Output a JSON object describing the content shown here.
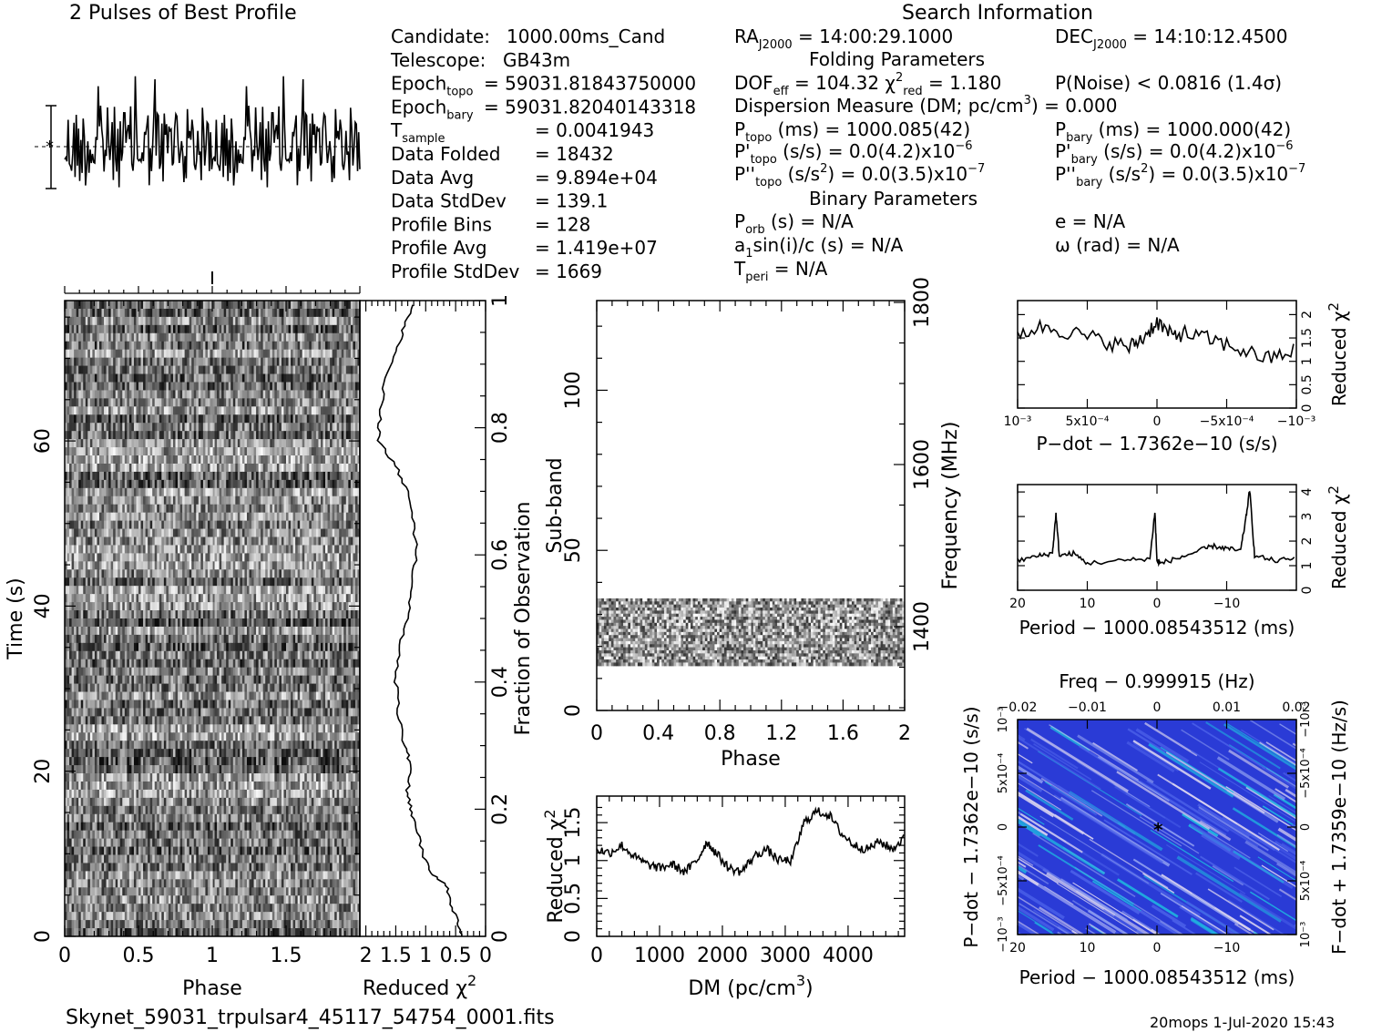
{
  "header": {
    "profile_title": "2 Pulses of Best Profile",
    "search_title": "Search Information",
    "folding_title": "Folding Parameters",
    "binary_title": "Binary Parameters"
  },
  "info_left": [
    {
      "label": "Candidate:",
      "value": "1000.00ms_Cand"
    },
    {
      "label": "Telescope:",
      "value": "GB43m"
    },
    {
      "label": "Epoch",
      "sub": "topo",
      "value": "= 59031.81843750000"
    },
    {
      "label": "Epoch",
      "sub": "bary",
      "value": "= 59031.82040143318"
    },
    {
      "label": "T",
      "sub": "sample",
      "value": "=   0.0041943"
    },
    {
      "label": "Data Folded",
      "value": "=   18432"
    },
    {
      "label": "Data Avg",
      "value": "=   9.894e+04"
    },
    {
      "label": "Data StdDev",
      "value": "=   139.1"
    },
    {
      "label": "Profile Bins",
      "value": "=   128"
    },
    {
      "label": "Profile Avg",
      "value": "=   1.419e+07"
    },
    {
      "label": "Profile StdDev",
      "value": "=   1669"
    }
  ],
  "info_mid": {
    "ra": "RAJ2000 = 14:00:29.1000",
    "dec": "DECJ2000 = 14:10:12.4500",
    "dof": "DOFeff = 104.32   χ²red = 1.180",
    "pnoise": "P(Noise) < 0.0816   (1.4σ)",
    "dm": "Dispersion Measure (DM; pc/cm³) = 0.000",
    "ptopo": "Ptopo (ms) =   1000.085(42)",
    "pbary": "Pbary (ms) =   1000.000(42)",
    "pdtopo": "P'topo (s/s) = 0.0(4.2)x10⁻⁶",
    "pdbary": "P'bary (s/s) = 0.0(4.2)x10⁻⁶",
    "pddtopo": "P''topo (s/s²) = 0.0(3.5)x10⁻⁷",
    "pddbary": "P''bary (s/s²) = 0.0(3.5)x10⁻⁷",
    "porb": "Porb (s) = N/A",
    "ecc": "e = N/A",
    "asini": "a1sin(i)/c (s) = N/A",
    "omega": "ω (rad) = N/A",
    "tperi": "Tperi = N/A"
  },
  "footer": {
    "filename": "Skynet_59031_trpulsar4_45117_54754_0001.fits",
    "stamp": "20mops   1-Jul-2020 15:43"
  },
  "chart_data": [
    {
      "type": "line",
      "name_in_image": "profile",
      "title": "2 Pulses of Best Profile",
      "x": "phase 0-2",
      "y_range": "relative"
    },
    {
      "type": "heatmap",
      "xlabel": "Phase",
      "ylabel": "Time (s)",
      "xticks": [
        "0",
        "0.5",
        "1",
        "1.5"
      ],
      "yticks": [
        "0",
        "20",
        "40",
        "60"
      ],
      "xlim": [
        0,
        2
      ],
      "ylim": [
        0,
        77
      ]
    },
    {
      "type": "line",
      "xlabel": "Reduced χ²",
      "ylabel": "Fraction of Observation",
      "xticks": [
        "2",
        "1.5",
        "1",
        "0.5",
        "0"
      ],
      "yticks": [
        "0",
        "0.2",
        "0.4",
        "0.6",
        "0.8",
        "1"
      ],
      "xlim": [
        2.1,
        0
      ],
      "ylim": [
        0,
        1
      ]
    },
    {
      "type": "heatmap",
      "xlabel": "Phase",
      "ylabel": "Sub-band",
      "ylabel_right": "Frequency (MHz)",
      "xticks": [
        "0",
        "0.4",
        "0.8",
        "1.2",
        "1.6",
        "2"
      ],
      "yticks": [
        "0",
        "50",
        "100"
      ],
      "yticks_right": [
        "1400",
        "1600",
        "1800"
      ],
      "xlim": [
        0,
        2
      ],
      "ylim": [
        0,
        128
      ],
      "active_subbands": [
        14,
        35
      ]
    },
    {
      "type": "line",
      "xlabel": "DM (pc/cm³)",
      "ylabel": "Reduced χ²",
      "xticks": [
        "0",
        "1000",
        "2000",
        "3000",
        "4000"
      ],
      "yticks": [
        "0",
        "0.5",
        "1",
        "1.5"
      ],
      "xlim": [
        0,
        4900
      ],
      "ylim": [
        0,
        1.85
      ],
      "x": [
        0,
        200,
        400,
        600,
        800,
        1000,
        1200,
        1400,
        1600,
        1750,
        1900,
        2100,
        2300,
        2500,
        2700,
        2900,
        3100,
        3300,
        3500,
        3700,
        3900,
        4100,
        4300,
        4500,
        4700,
        4900
      ],
      "values": [
        1.15,
        1.1,
        1.2,
        1.05,
        0.95,
        0.9,
        0.95,
        0.85,
        1.0,
        1.25,
        1.1,
        0.9,
        0.85,
        1.05,
        1.15,
        1.0,
        1.0,
        1.5,
        1.65,
        1.6,
        1.35,
        1.2,
        1.15,
        1.25,
        1.15,
        1.3
      ]
    },
    {
      "type": "line",
      "xlabel": "P-dot − 1.7362e-10 (s/s)",
      "ylabel": "Reduced χ²",
      "xticks": [
        "10⁻³",
        "5x10⁻⁴",
        "0",
        "−5x10⁻⁴",
        "−10⁻³"
      ],
      "yticks": [
        "0",
        "0.5",
        "1",
        "1.5",
        "2"
      ],
      "xlim": [
        0.001,
        -0.001
      ],
      "ylim": [
        0,
        2.3
      ],
      "x": [
        0.001,
        0.0008,
        0.0006,
        0.0004,
        0.0002,
        0.0001,
        0,
        -0.0001,
        -0.0002,
        -0.0004,
        -0.0006,
        -0.0008,
        -0.001
      ],
      "values": [
        1.6,
        1.75,
        1.6,
        1.45,
        1.3,
        1.5,
        1.85,
        1.55,
        1.6,
        1.45,
        1.25,
        1.05,
        1.25
      ]
    },
    {
      "type": "line",
      "xlabel": "Period − 1000.08543512 (ms)",
      "ylabel": "Reduced χ²",
      "xticks": [
        "20",
        "10",
        "0",
        "−10"
      ],
      "yticks": [
        "0",
        "1",
        "2",
        "3",
        "4"
      ],
      "xlim": [
        20,
        -20
      ],
      "ylim": [
        0,
        4.3
      ],
      "x": [
        20,
        17,
        15,
        14.5,
        14,
        12,
        10,
        5,
        1,
        0.3,
        0,
        -0.5,
        -3,
        -6,
        -8,
        -10,
        -12,
        -12.8,
        -13.3,
        -14,
        -17,
        -20
      ],
      "values": [
        1.2,
        1.4,
        1.5,
        3.1,
        1.4,
        1.5,
        1.1,
        1.2,
        1.3,
        3.2,
        1.2,
        1.1,
        1.3,
        1.6,
        1.8,
        1.7,
        1.6,
        3.0,
        4.1,
        1.4,
        1.2,
        1.3
      ]
    },
    {
      "type": "heatmap",
      "title": "Freq − 0.999915 (Hz)",
      "xlabel": "Period − 1000.08543512 (ms)",
      "ylabel": "P-dot − 1.7362e-10 (s/s)",
      "ylabel_right": "F-dot + 1.7359e-10 (Hz/s)",
      "xticks": [
        "20",
        "10",
        "0",
        "−10"
      ],
      "xticks_top": [
        "−0.02",
        "−0.01",
        "0",
        "0.01",
        "0.02"
      ],
      "yticks": [
        "10⁻³",
        "5x10⁻⁴",
        "0",
        "−5x10⁻⁴",
        "−10⁻³"
      ],
      "yticks_right": [
        "−10⁻³",
        "−5x10⁻⁴",
        "0",
        "5x10⁻⁴",
        "10⁻³"
      ],
      "colors": [
        "#2a3bd6",
        "#4a5fe8",
        "#8d9cf0",
        "#d8d2f0",
        "#1fb8e0"
      ]
    }
  ]
}
